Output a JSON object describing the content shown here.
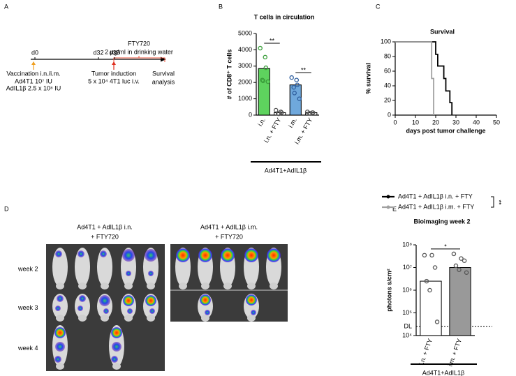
{
  "panel_labels": [
    "A",
    "B",
    "C",
    "D",
    "E"
  ],
  "timeline": {
    "drug": "FTY720",
    "drug_dose": "2 µg/ml in drinking water",
    "days": [
      "d0",
      "d32",
      "d35"
    ],
    "events": [
      {
        "title": [
          "Vaccination i.n./i.m."
        ],
        "details": [
          "Ad4T1 10⁷ IU",
          "AdIL1β 2.5 x 10⁸ IU"
        ]
      },
      {
        "title": [
          "Tumor induction"
        ],
        "details": [
          "5 x 10⁴ 4T1 luc i.v."
        ]
      },
      {
        "title": [
          "Survival",
          "analysis"
        ],
        "details": []
      }
    ]
  },
  "chart_data": [
    {
      "type": "bar",
      "title": "T cells in circulation",
      "ylabel": "# of CD8⁺ T cells",
      "categories": [
        "i.n.",
        "i.n. + FTY",
        "i.m.",
        "i.m. + FTY"
      ],
      "values": [
        2850,
        150,
        1850,
        150
      ],
      "colors": [
        "#5ed35e",
        "#ffffff",
        "#6fa8dc",
        "#ffffff"
      ],
      "point_colors": [
        "#3a9e3a",
        "#555555",
        "#2f5f9e",
        "#555555"
      ],
      "points": [
        [
          4100,
          3550,
          2900,
          2150,
          2100,
          2050
        ],
        [
          300,
          200,
          150,
          100,
          80
        ],
        [
          2300,
          2150,
          1850,
          1700,
          1350,
          1000
        ],
        [
          200,
          150,
          150,
          120,
          100
        ]
      ],
      "ylim": [
        0,
        5000
      ],
      "yticks": [
        0,
        1000,
        2000,
        3000,
        4000,
        5000
      ],
      "significance": [
        "**",
        "**"
      ],
      "group_label": "Ad4T1+AdIL1β"
    },
    {
      "type": "line",
      "title": "Survival",
      "xlabel": "days post tumor challenge",
      "ylabel": "% survival",
      "xlim": [
        0,
        50
      ],
      "xticks": [
        0,
        10,
        20,
        30,
        40,
        50
      ],
      "ylim": [
        0,
        100
      ],
      "yticks": [
        0,
        20,
        40,
        60,
        80,
        100
      ],
      "series": [
        {
          "name": "Ad4T1 + AdIL1β i.n. + FTY",
          "color": "#000000",
          "x": [
            0,
            20,
            20,
            21,
            21,
            24,
            24,
            25,
            25,
            27,
            27,
            28,
            28
          ],
          "values": [
            100,
            100,
            83,
            83,
            67,
            67,
            50,
            50,
            33,
            33,
            17,
            17,
            0
          ]
        },
        {
          "name": "Ad4T1 + AdIL1β i.m. + FTY",
          "color": "#a0a0a0",
          "x": [
            0,
            18,
            18,
            19,
            19
          ],
          "values": [
            100,
            100,
            50,
            50,
            0
          ]
        }
      ],
      "significance": "**",
      "legend": "below"
    },
    {
      "type": "bar",
      "title": "Bioimaging week 2",
      "ylabel": "photons s/cm²",
      "log_y": true,
      "categories": [
        "i.n. + FTY",
        "i.m. + FTY"
      ],
      "values": [
        2500000,
        10000000
      ],
      "colors": [
        "#ffffff",
        "#999999"
      ],
      "point_colors": [
        "#555555",
        "#555555"
      ],
      "points": [
        [
          35000000,
          35000000,
          10000000,
          2500000,
          1000000,
          40000
        ],
        [
          40000000,
          25000000,
          20000000,
          12000000,
          8000000,
          6000000
        ]
      ],
      "ylim": [
        10000,
        100000000
      ],
      "yticks": [
        {
          "value": 10000,
          "label": "10⁴"
        },
        {
          "value": 100000,
          "label": "10⁵"
        },
        {
          "value": 1000000,
          "label": "10⁶"
        },
        {
          "value": 10000000,
          "label": "10⁷"
        },
        {
          "value": 100000000,
          "label": "10⁸"
        }
      ],
      "reference_line": {
        "value": 25000,
        "label": "DL"
      },
      "significance": [
        "*"
      ],
      "group_label": "Ad4T1+AdIL1β"
    }
  ],
  "imaging": {
    "headings": [
      [
        "Ad4T1 + AdIL1β i.n.",
        "+ FTY720"
      ],
      [
        "Ad4T1 + AdIL1β i.m.",
        "+ FTY720"
      ]
    ],
    "rows": [
      "week 2",
      "week 3",
      "week 4"
    ]
  }
}
